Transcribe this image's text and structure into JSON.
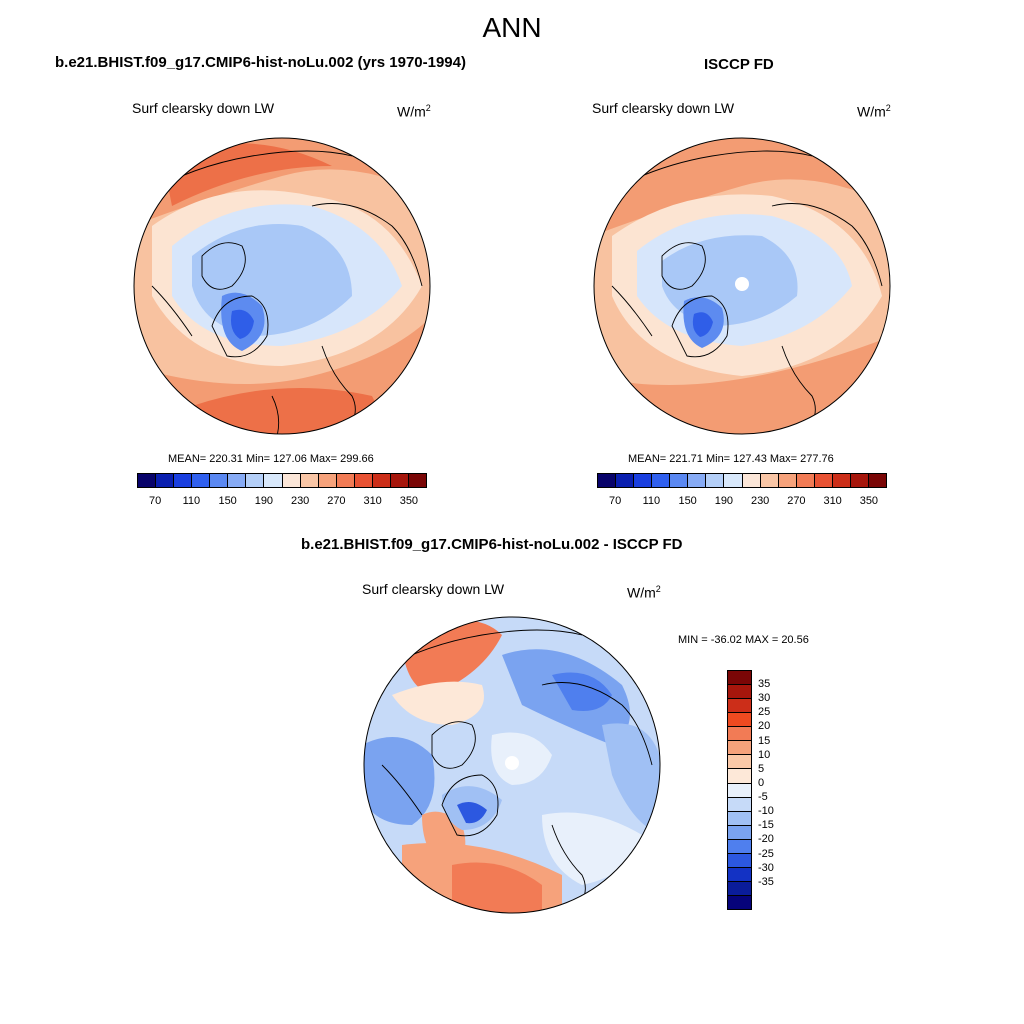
{
  "page_title": "ANN",
  "panels": [
    {
      "title": "b.e21.BHIST.f09_g17.CMIP6-hist-noLu.002 (yrs 1970-1994)",
      "variable": "Surf clearsky down LW",
      "unit": "W/m",
      "unit_sup": "2",
      "stats": "MEAN= 220.31  Min= 127.06  Max= 299.66",
      "mean": 220.31,
      "min": 127.06,
      "max": 299.66
    },
    {
      "title": "ISCCP FD",
      "variable": "Surf clearsky down LW",
      "unit": "W/m",
      "unit_sup": "2",
      "stats": "MEAN= 221.71  Min= 127.43  Max= 277.76",
      "mean": 221.71,
      "min": 127.43,
      "max": 277.76
    },
    {
      "title": "b.e21.BHIST.f09_g17.CMIP6-hist-noLu.002 - ISCCP FD",
      "variable": "Surf clearsky down LW",
      "unit": "W/m",
      "unit_sup": "2",
      "stats": "MIN = -36.02 MAX =  20.56",
      "min": -36.02,
      "max": 20.56
    }
  ],
  "colorbar_abs": {
    "colors": [
      "#08036b",
      "#0a1fb0",
      "#1a3fe0",
      "#3060ef",
      "#5a88f2",
      "#87abf5",
      "#b4cff8",
      "#d8e8fb",
      "#fbe6d8",
      "#f9c6a6",
      "#f6a27b",
      "#f27b55",
      "#e85233",
      "#cc2e19",
      "#a6160c",
      "#7a0606"
    ],
    "tick_labels": [
      "70",
      "110",
      "150",
      "190",
      "230",
      "270",
      "310",
      "350"
    ]
  },
  "colorbar_diff": {
    "colors": [
      "#7a0606",
      "#a6160c",
      "#cc2e19",
      "#ee4a20",
      "#f27b55",
      "#f6a27b",
      "#fbc9a8",
      "#fde8d8",
      "#e8f0fb",
      "#c6daf8",
      "#a0c0f4",
      "#7aa3f0",
      "#4f7fee",
      "#2c58e0",
      "#1332c4",
      "#0a1c9a",
      "#06037a"
    ],
    "tick_labels": [
      "35",
      "30",
      "25",
      "20",
      "15",
      "10",
      "5",
      "0",
      "-5",
      "-10",
      "-15",
      "-20",
      "-25",
      "-30",
      "-35"
    ]
  },
  "map_colors": {
    "deep_blue": "#2f5ee8",
    "mid_blue": "#5d8bf0",
    "light_blue": "#a9c8f7",
    "pale_blue": "#d7e6fb",
    "cream": "#fce4d2",
    "peach": "#f8c2a0",
    "orange": "#f39c73",
    "red_orange": "#ed7048",
    "ocean_outline": "#000000"
  }
}
